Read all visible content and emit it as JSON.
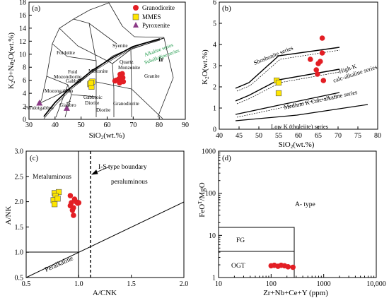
{
  "chart_data": [
    {
      "panel": "(a)",
      "type": "scatter",
      "xlabel": "SiO2(wt.%)",
      "ylabel": "K2O+Na2O(wt.%)",
      "xlim": [
        30,
        90
      ],
      "ylim": [
        0,
        18
      ],
      "xticks": [
        30,
        40,
        50,
        60,
        70,
        80,
        90
      ],
      "yticks": [
        0,
        2,
        4,
        6,
        8,
        10,
        12,
        14,
        16,
        18
      ],
      "legend": [
        "Granodiorite",
        "MMES",
        "Pyroxenite"
      ],
      "legend_position": "top-right",
      "series": [
        {
          "name": "Granodiorite",
          "marker": "circle",
          "color": "#e31e24",
          "points": [
            [
              63.5,
              6.0
            ],
            [
              64.5,
              6.2
            ],
            [
              65.2,
              6.6
            ],
            [
              65.5,
              5.9
            ],
            [
              66.0,
              6.4
            ],
            [
              66.2,
              5.8
            ],
            [
              64.8,
              5.6
            ],
            [
              65.8,
              7.0
            ],
            [
              63.0,
              5.9
            ],
            [
              65.0,
              6.9
            ]
          ]
        },
        {
          "name": "MMES",
          "marker": "square",
          "color": "#ffe600",
          "points": [
            [
              53.5,
              5.4
            ],
            [
              54.0,
              5.0
            ],
            [
              54.3,
              5.8
            ],
            [
              53.8,
              5.6
            ]
          ]
        },
        {
          "name": "Pyroxenite",
          "marker": "triangle",
          "color": "#8b3a86",
          "points": [
            [
              34.0,
              2.5
            ],
            [
              44.5,
              1.7
            ]
          ]
        }
      ],
      "field_labels": [
        "Foidolite",
        "Syenite",
        "Foid Monzosyenite",
        "Mozondiorite",
        "Foid Gabbro",
        "Mozongabbro",
        "Peridotgabbro",
        "Gabbro",
        "Mozonite",
        "Quartz Monzonite",
        "Gabbroic Diorite",
        "Diorite",
        "Granodiorite",
        "Granite",
        "Ir",
        "Alkaline series",
        "Subalkaline series"
      ]
    },
    {
      "panel": "(b)",
      "type": "scatter",
      "xlabel": "SiO2(wt.%)",
      "ylabel": "K2O(wt.%)",
      "xlim": [
        40,
        80
      ],
      "ylim": [
        0,
        6
      ],
      "xticks": [
        40,
        45,
        50,
        55,
        60,
        65,
        70,
        75,
        80
      ],
      "yticks": [
        0,
        1,
        2,
        3,
        4,
        5,
        6
      ],
      "series": [
        {
          "name": "Granodiorite",
          "marker": "circle",
          "color": "#e31e24",
          "points": [
            [
              63.0,
              3.3
            ],
            [
              65.0,
              3.1
            ],
            [
              64.5,
              2.8
            ],
            [
              66.0,
              3.6
            ],
            [
              66.0,
              4.3
            ],
            [
              65.5,
              3.2
            ],
            [
              66.3,
              2.3
            ],
            [
              64.8,
              2.6
            ]
          ]
        },
        {
          "name": "MMES",
          "marker": "square",
          "color": "#ffe600",
          "points": [
            [
              54.5,
              2.3
            ],
            [
              55.0,
              2.2
            ],
            [
              55.0,
              1.7
            ]
          ]
        }
      ],
      "field_labels": [
        "Shoshonite series",
        "High-K calc-alkaline series",
        "Medium K Calc-alkaline series",
        "Low K (tholeiite) series"
      ]
    },
    {
      "panel": "(c)",
      "type": "scatter",
      "xlabel": "A/CNK",
      "ylabel": "A/NK",
      "xlim": [
        0.5,
        2.0
      ],
      "ylim": [
        0.5,
        3.0
      ],
      "xticks": [
        0.5,
        1.0,
        1.5,
        2.0
      ],
      "yticks": [
        0.5,
        1.0,
        1.5,
        2.0,
        2.5,
        3.0
      ],
      "series": [
        {
          "name": "Granodiorite",
          "marker": "circle",
          "color": "#e31e24",
          "points": [
            [
              0.92,
              2.12
            ],
            [
              0.93,
              1.98
            ],
            [
              0.95,
              1.88
            ],
            [
              0.94,
              1.83
            ],
            [
              0.96,
              2.05
            ],
            [
              0.98,
              1.99
            ],
            [
              0.99,
              1.97
            ],
            [
              1.0,
              1.98
            ],
            [
              0.95,
              1.73
            ],
            [
              0.92,
              1.92
            ]
          ]
        },
        {
          "name": "MMES",
          "marker": "square",
          "color": "#ffe600",
          "points": [
            [
              0.77,
              2.17
            ],
            [
              0.81,
              2.19
            ],
            [
              0.78,
              2.11
            ],
            [
              0.76,
              2.03
            ],
            [
              0.8,
              2.06
            ],
            [
              0.77,
              1.95
            ]
          ]
        }
      ],
      "field_labels": [
        "Metaluminous",
        "peraluminous",
        "Peralkaline",
        "I-S type boundary"
      ]
    },
    {
      "panel": "(d)",
      "type": "scatter",
      "xlabel": "Zr+Nb+Ce+Y (ppm)",
      "ylabel": "FeOT/MgO",
      "xscale": "log",
      "yscale": "log",
      "xlim": [
        10,
        10000
      ],
      "ylim": [
        1,
        1000
      ],
      "xticks": [
        "10",
        "100",
        "1000",
        "10,000"
      ],
      "yticks": [
        "1",
        "10",
        "100",
        "1000"
      ],
      "series": [
        {
          "name": "Granodiorite",
          "marker": "circle",
          "color": "#e31e24",
          "points": [
            [
              100,
              1.9
            ],
            [
              115,
              1.95
            ],
            [
              135,
              1.85
            ],
            [
              155,
              1.95
            ],
            [
              180,
              1.9
            ],
            [
              210,
              1.8
            ],
            [
              260,
              1.75
            ]
          ]
        }
      ],
      "field_labels": [
        "A- type",
        "FG",
        "OGT"
      ]
    }
  ]
}
